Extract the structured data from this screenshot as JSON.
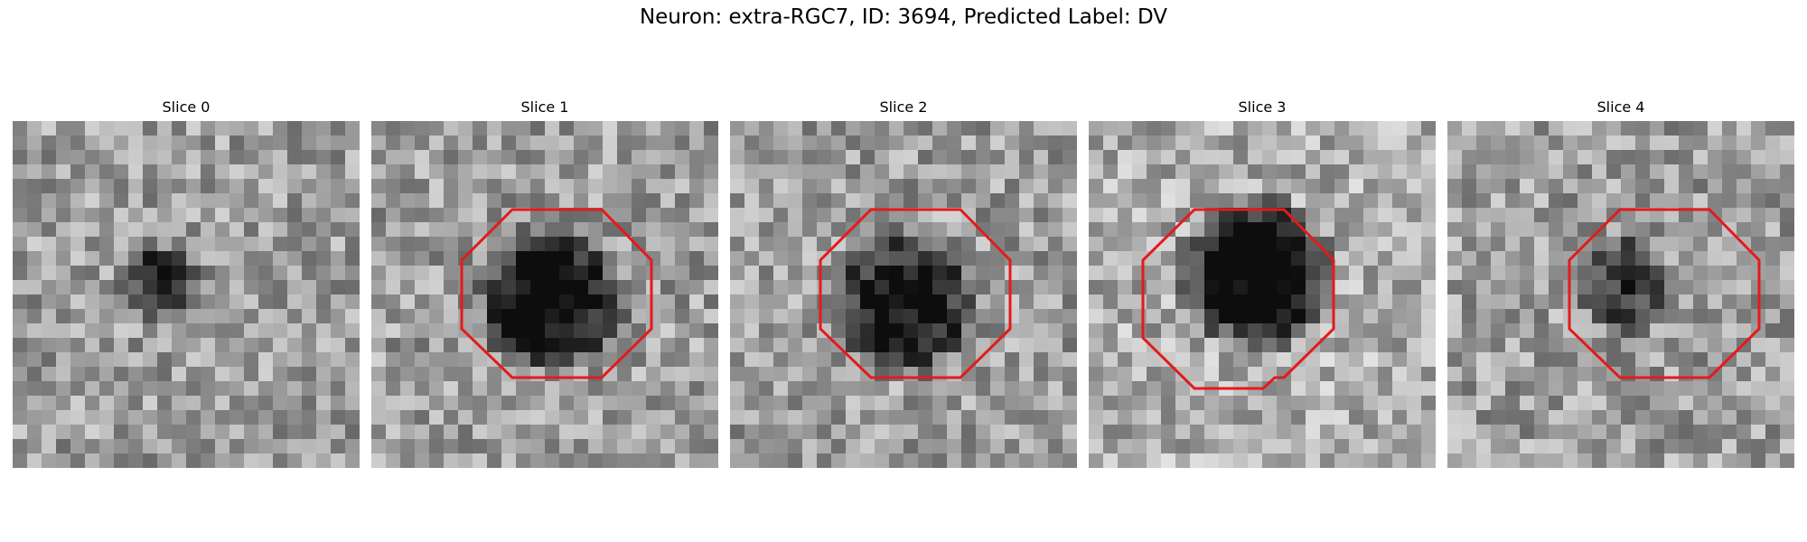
{
  "figure": {
    "title": "Neuron: extra-RGC7, ID: 3694, Predicted Label: DV"
  },
  "slices": [
    {
      "title": "Slice 0",
      "has_outline": false,
      "darkness": 0.45,
      "blob_radius": 3.0
    },
    {
      "title": "Slice 1",
      "has_outline": true,
      "darkness": 0.72,
      "blob_radius": 5.6
    },
    {
      "title": "Slice 2",
      "has_outline": true,
      "darkness": 0.62,
      "blob_radius": 5.6
    },
    {
      "title": "Slice 3",
      "has_outline": true,
      "darkness": 0.8,
      "blob_radius": 5.8
    },
    {
      "title": "Slice 4",
      "has_outline": true,
      "darkness": 0.45,
      "blob_radius": 3.8
    }
  ],
  "colors": {
    "outline": "#e41a1c"
  }
}
